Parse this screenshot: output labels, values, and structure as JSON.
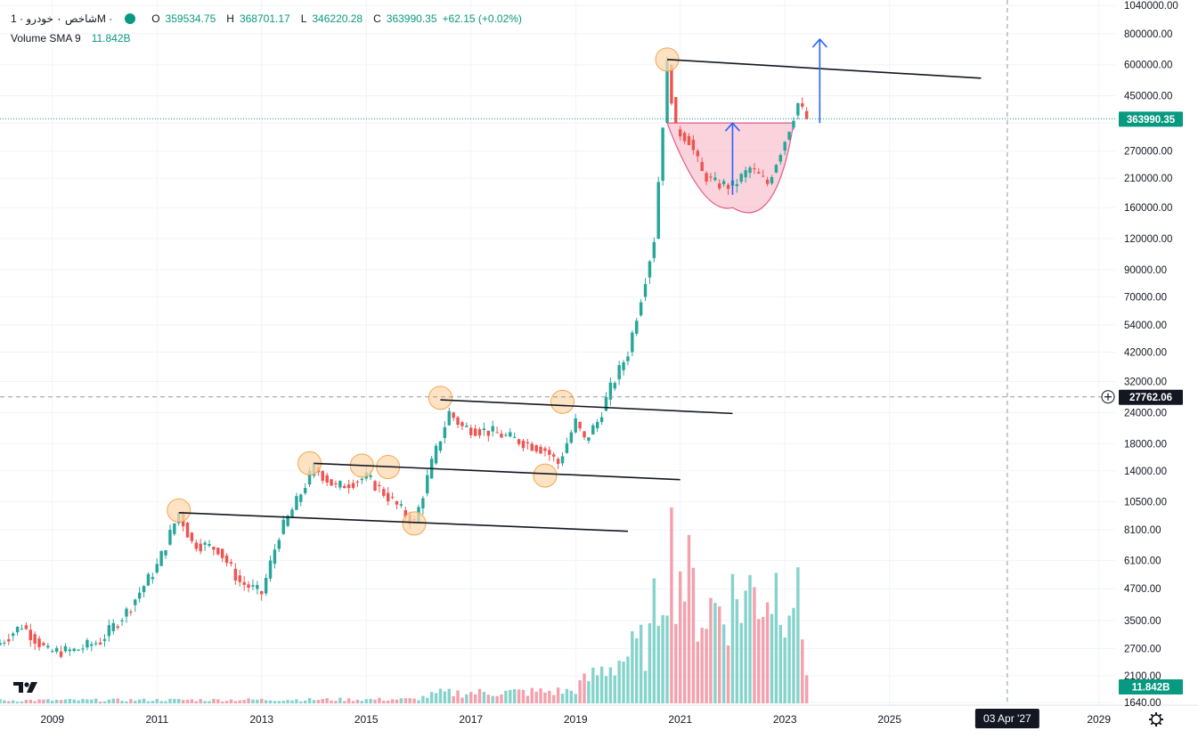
{
  "legend": {
    "symbol": "شاخص ۰ خودرو · 1M ·",
    "o_label": "O",
    "o_value": "359534.75",
    "h_label": "H",
    "h_value": "368701.17",
    "l_label": "L",
    "l_value": "346220.28",
    "c_label": "C",
    "c_value": "363990.35",
    "change": "+62.15 (+0.02%)",
    "volume_label": "Volume SMA 9",
    "volume_value": "11.842B"
  },
  "colors": {
    "up": "#26a69a",
    "down": "#ef5350",
    "vol_up": "#86d3cb",
    "vol_down": "#f2a1ad",
    "price_tag": "#089981",
    "crosshair_tag": "#131722",
    "circle_fill": "#fcd9b0",
    "circle_stroke": "#f7a54b",
    "cup_fill": "#f8c0cd",
    "cup_stroke": "#e4578a",
    "arrow": "#2962ff"
  },
  "chart_data": {
    "type": "candlestick",
    "scale": "log",
    "ylim": [
      1640,
      1040000
    ],
    "x_range": [
      "2008-01",
      "2030-05"
    ],
    "y_ticks": [
      "1040000.00",
      "800000.00",
      "600000.00",
      "450000.00",
      "350000.00",
      "270000.00",
      "210000.00",
      "160000.00",
      "120000.00",
      "90000.00",
      "70000.00",
      "54000.00",
      "42000.00",
      "32000.00",
      "24000.00",
      "18000.00",
      "14000.00",
      "10500.00",
      "8100.00",
      "6100.00",
      "4700.00",
      "3500.00",
      "2700.00",
      "2100.00",
      "1640.00"
    ],
    "x_ticks": [
      "2009",
      "2011",
      "2013",
      "2015",
      "2017",
      "2019",
      "2021",
      "2023",
      "2025",
      "2029"
    ],
    "last_price": "363990.35",
    "crosshair_price": "27762.06",
    "crosshair_date": "03 Apr '27",
    "volume_tag": "11.842B",
    "price_keypoints": [
      [
        "2008-01",
        2850
      ],
      [
        "2008-06",
        3350
      ],
      [
        "2008-12",
        2620
      ],
      [
        "2009-06",
        2650
      ],
      [
        "2009-12",
        2900
      ],
      [
        "2010-06",
        3800
      ],
      [
        "2011-01",
        5800
      ],
      [
        "2011-06",
        9500
      ],
      [
        "2011-09",
        7200
      ],
      [
        "2012-03",
        6800
      ],
      [
        "2012-08",
        5000
      ],
      [
        "2013-01",
        4500
      ],
      [
        "2013-05",
        7800
      ],
      [
        "2013-09",
        10500
      ],
      [
        "2014-01",
        14500
      ],
      [
        "2014-06",
        12000
      ],
      [
        "2015-01",
        13200
      ],
      [
        "2015-06",
        11000
      ],
      [
        "2015-12",
        8600
      ],
      [
        "2016-04",
        15000
      ],
      [
        "2016-08",
        24000
      ],
      [
        "2016-11",
        21000
      ],
      [
        "2017-06",
        20000
      ],
      [
        "2017-12",
        18500
      ],
      [
        "2018-06",
        17000
      ],
      [
        "2018-09",
        15000
      ],
      [
        "2019-01",
        22000
      ],
      [
        "2019-03",
        18500
      ],
      [
        "2019-06",
        22000
      ],
      [
        "2019-09",
        30000
      ],
      [
        "2020-01",
        42000
      ],
      [
        "2020-04",
        70000
      ],
      [
        "2020-07",
        120000
      ],
      [
        "2020-10",
        600000
      ],
      [
        "2020-12",
        330000
      ],
      [
        "2021-03",
        300000
      ],
      [
        "2021-06",
        220000
      ],
      [
        "2021-09",
        200000
      ],
      [
        "2022-01",
        195000
      ],
      [
        "2022-05",
        230000
      ],
      [
        "2022-09",
        200000
      ],
      [
        "2023-01",
        300000
      ],
      [
        "2023-04",
        420000
      ],
      [
        "2023-06",
        363990
      ]
    ],
    "volume_profile": [
      [
        "2008-01",
        0.3
      ],
      [
        "2015-12",
        0.4
      ],
      [
        "2016-06",
        1.0
      ],
      [
        "2018-12",
        1.2
      ],
      [
        "2019-06",
        3.0
      ],
      [
        "2020-06",
        6.0
      ],
      [
        "2020-10",
        16.0
      ],
      [
        "2021-06",
        9.0
      ],
      [
        "2022-06",
        11.0
      ],
      [
        "2023-03",
        12.0
      ],
      [
        "2023-06",
        4.0
      ]
    ],
    "trendlines": [
      {
        "from": [
          "2011-06",
          9500
        ],
        "to": [
          "2020-01",
          8000
        ]
      },
      {
        "from": [
          "2014-01",
          15000
        ],
        "to": [
          "2021-01",
          12900
        ]
      },
      {
        "from": [
          "2016-06",
          27000
        ],
        "to": [
          "2022-01",
          23800
        ]
      },
      {
        "from": [
          "2020-10",
          630000
        ],
        "to": [
          "2026-10",
          530000
        ]
      }
    ],
    "highlight_circles": [
      [
        "2011-06",
        9700
      ],
      [
        "2013-12",
        15000
      ],
      [
        "2014-12",
        14700
      ],
      [
        "2015-06",
        14500
      ],
      [
        "2015-12",
        8600
      ],
      [
        "2016-06",
        27500
      ],
      [
        "2018-06",
        13400
      ],
      [
        "2018-10",
        26500
      ],
      [
        "2020-10",
        630000
      ]
    ],
    "cup_pattern": {
      "start": [
        "2020-10",
        350000
      ],
      "bottom": [
        "2022-01",
        160000
      ],
      "end": [
        "2023-03",
        350000
      ]
    },
    "arrows": [
      {
        "x": "2022-01",
        "from": 180000,
        "to": 350000
      },
      {
        "x": "2023-09",
        "from": 350000,
        "to": 760000
      }
    ]
  }
}
